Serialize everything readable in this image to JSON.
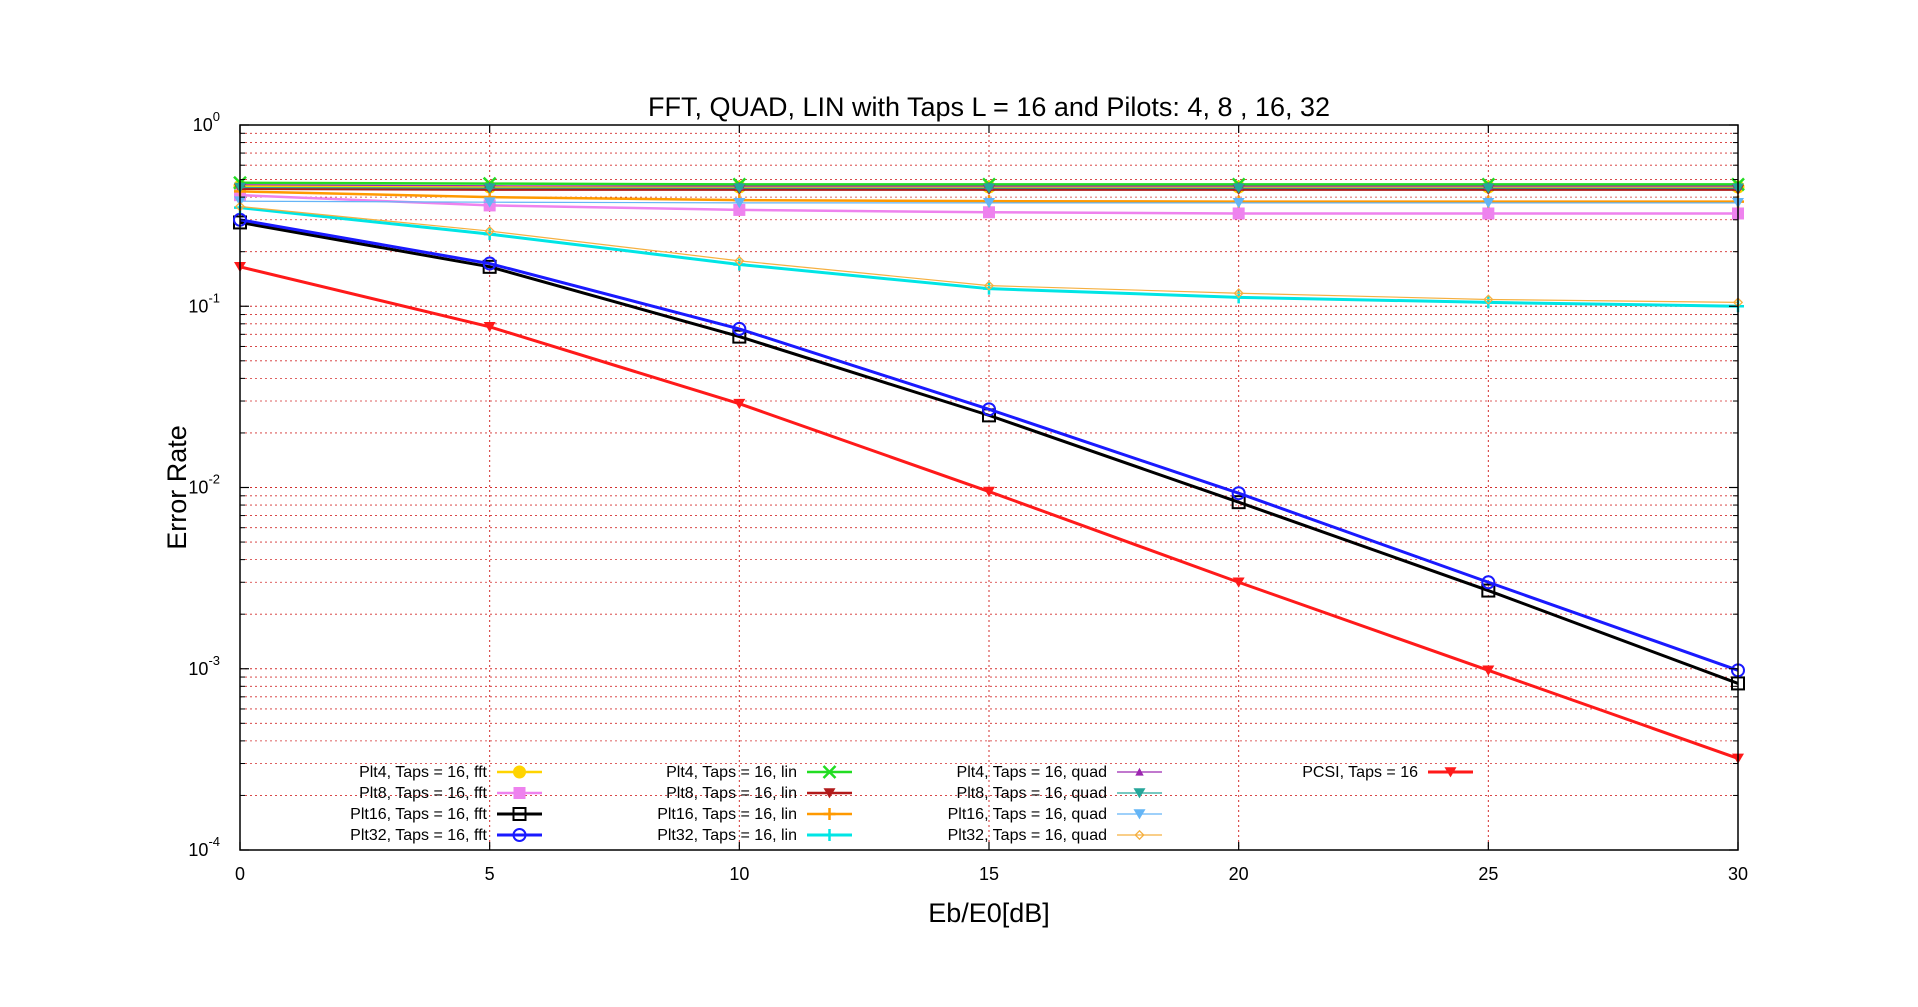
{
  "chart_data": {
    "type": "line",
    "title": "FFT, QUAD, LIN  with  Taps L = 16  and  Pilots: 4, 8 , 16, 32",
    "xlabel": "Eb/E0[dB]",
    "ylabel": "Error Rate",
    "xlim": [
      0,
      30
    ],
    "ylim": [
      0.0001,
      1
    ],
    "yscale": "log",
    "grid": true,
    "grid_color": "#d32f2f",
    "legend_position": "lower-left inside",
    "x": [
      0,
      5,
      10,
      15,
      20,
      25,
      30
    ],
    "x_ticks": [
      "0",
      "5",
      "10",
      "15",
      "20",
      "25",
      "30"
    ],
    "y_ticks": [
      {
        "base": "10",
        "exp": "0"
      },
      {
        "base": "10",
        "exp": "-1"
      },
      {
        "base": "10",
        "exp": "-2"
      },
      {
        "base": "10",
        "exp": "-3"
      },
      {
        "base": "10",
        "exp": "-4"
      }
    ],
    "series": [
      {
        "name": "Plt4, Taps = 16, fft",
        "color": "#ffd400",
        "marker": "circle-filled",
        "width": 2.5,
        "values": [
          0.46,
          0.455,
          0.455,
          0.455,
          0.455,
          0.455,
          0.455
        ]
      },
      {
        "name": "Plt8, Taps = 16, fft",
        "color": "#ee82ee",
        "marker": "square-filled",
        "width": 2.5,
        "values": [
          0.41,
          0.36,
          0.34,
          0.33,
          0.325,
          0.325,
          0.325
        ]
      },
      {
        "name": "Plt16, Taps = 16, fft",
        "color": "#000000",
        "marker": "square-open",
        "width": 3,
        "values": [
          0.29,
          0.165,
          0.068,
          0.025,
          0.0083,
          0.0027,
          0.00083
        ]
      },
      {
        "name": "Plt32, Taps = 16, fft",
        "color": "#1a1aff",
        "marker": "circle-open",
        "width": 3,
        "values": [
          0.3,
          0.172,
          0.075,
          0.027,
          0.0093,
          0.003,
          0.00098
        ]
      },
      {
        "name": "Plt4, Taps = 16, lin",
        "color": "#22dd22",
        "marker": "x",
        "width": 2.5,
        "values": [
          0.48,
          0.475,
          0.47,
          0.47,
          0.47,
          0.47,
          0.47
        ]
      },
      {
        "name": "Plt8, Taps = 16, lin",
        "color": "#b11a1a",
        "marker": "tri-down-filled",
        "width": 2.5,
        "values": [
          0.445,
          0.44,
          0.44,
          0.44,
          0.44,
          0.44,
          0.44
        ]
      },
      {
        "name": "Plt16, Taps = 16, lin",
        "color": "#ff9900",
        "marker": "plus",
        "width": 2.5,
        "values": [
          0.43,
          0.4,
          0.385,
          0.38,
          0.378,
          0.378,
          0.378
        ]
      },
      {
        "name": "Plt32, Taps = 16, lin",
        "color": "#00e5e5",
        "marker": "plus",
        "width": 3,
        "values": [
          0.35,
          0.25,
          0.17,
          0.125,
          0.112,
          0.105,
          0.1
        ]
      },
      {
        "name": "Plt4, Taps = 16, quad",
        "color": "#9c27b0",
        "marker": "tri-up-filled",
        "width": 1.2,
        "values": [
          0.468,
          0.462,
          0.46,
          0.46,
          0.46,
          0.46,
          0.46
        ]
      },
      {
        "name": "Plt8, Taps = 16, quad",
        "color": "#26a69a",
        "marker": "tri-down-filled",
        "width": 1.2,
        "values": [
          0.452,
          0.448,
          0.448,
          0.448,
          0.448,
          0.448,
          0.448
        ]
      },
      {
        "name": "Plt16, Taps = 16, quad",
        "color": "#64b5f6",
        "marker": "tri-down-filled",
        "width": 1.2,
        "values": [
          0.38,
          0.375,
          0.372,
          0.372,
          0.372,
          0.372,
          0.372
        ]
      },
      {
        "name": "Plt32, Taps = 16, quad",
        "color": "#f5b041",
        "marker": "diamond-open",
        "width": 1.2,
        "values": [
          0.355,
          0.26,
          0.178,
          0.13,
          0.118,
          0.109,
          0.105
        ]
      },
      {
        "name": "PCSI, Taps = 16",
        "color": "#ff1a1a",
        "marker": "tri-down-filled",
        "width": 3,
        "values": [
          0.165,
          0.077,
          0.029,
          0.0095,
          0.003,
          0.00098,
          0.00032
        ]
      }
    ]
  }
}
